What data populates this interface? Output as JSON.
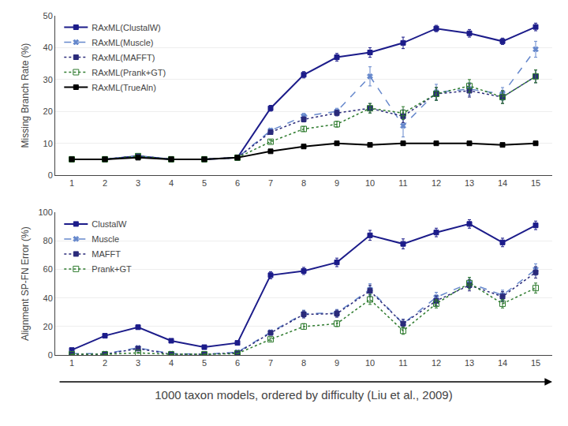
{
  "chart_data": [
    {
      "type": "line",
      "ylabel": "Missing Branch Rate (%)",
      "x": [
        1,
        2,
        3,
        4,
        5,
        6,
        7,
        8,
        9,
        10,
        11,
        12,
        13,
        14,
        15
      ],
      "xlim": [
        0.5,
        15.5
      ],
      "xticks": [
        1,
        2,
        3,
        4,
        5,
        6,
        7,
        8,
        9,
        10,
        11,
        12,
        13,
        14,
        15
      ],
      "ylim": [
        0,
        50
      ],
      "yticks": [
        0,
        10,
        20,
        30,
        40,
        50
      ],
      "grid": true,
      "legend": "upper left",
      "series": [
        {
          "name": "RAxML(ClustalW)",
          "color": "#1c1c8a",
          "marker": "square",
          "line_style": "solid",
          "values": [
            5.0,
            5.0,
            6.0,
            5.0,
            5.0,
            5.5,
            21.0,
            31.5,
            37.0,
            38.5,
            41.5,
            46.0,
            44.5,
            42.0,
            46.5
          ],
          "errors": [
            0.3,
            0.2,
            0.4,
            0.2,
            0.2,
            0.3,
            0.9,
            1.0,
            1.2,
            1.5,
            1.8,
            1.0,
            1.2,
            1.0,
            1.2
          ]
        },
        {
          "name": "RAxML(Muscle)",
          "color": "#6688cc",
          "marker": "x",
          "line_style": "dashed",
          "values": [
            5.0,
            5.0,
            6.0,
            5.0,
            5.0,
            5.5,
            14.0,
            18.5,
            20.0,
            31.0,
            15.5,
            26.0,
            27.0,
            25.5,
            39.5
          ],
          "errors": [
            0.2,
            0.2,
            0.4,
            0.2,
            0.2,
            0.3,
            0.7,
            0.9,
            1.0,
            3.0,
            3.5,
            2.5,
            2.0,
            2.0,
            2.5
          ]
        },
        {
          "name": "RAxML(MAFFT)",
          "color": "#2a2a7a",
          "marker": "square",
          "line_style": "dotted",
          "values": [
            5.0,
            5.0,
            6.0,
            5.0,
            5.0,
            5.5,
            13.5,
            17.5,
            19.5,
            21.0,
            18.5,
            25.5,
            26.5,
            24.5,
            31.0
          ],
          "errors": [
            0.2,
            0.2,
            0.3,
            0.2,
            0.2,
            0.3,
            0.6,
            0.8,
            0.9,
            1.5,
            2.0,
            2.0,
            2.0,
            2.0,
            2.0
          ]
        },
        {
          "name": "RAxML(Prank+GT)",
          "color": "#2e7b2e",
          "marker": "square-open",
          "line_style": "dotted",
          "values": [
            5.0,
            5.0,
            6.0,
            5.0,
            5.0,
            5.5,
            10.5,
            14.5,
            16.0,
            21.0,
            19.5,
            25.5,
            28.0,
            24.5,
            31.0
          ],
          "errors": [
            0.2,
            0.2,
            0.3,
            0.2,
            0.2,
            0.3,
            0.5,
            0.7,
            0.9,
            1.5,
            2.0,
            2.0,
            2.0,
            2.0,
            2.0
          ]
        },
        {
          "name": "RAxML(TrueAln)",
          "color": "#000000",
          "marker": "square",
          "line_style": "solid",
          "values": [
            5.0,
            5.0,
            5.5,
            5.0,
            5.0,
            5.5,
            7.5,
            9.0,
            10.0,
            9.5,
            10.0,
            10.0,
            10.0,
            9.5,
            10.0
          ],
          "errors": [
            0.15,
            0.15,
            0.2,
            0.15,
            0.15,
            0.2,
            0.3,
            0.4,
            0.5,
            0.5,
            0.5,
            0.4,
            0.4,
            0.4,
            0.4
          ]
        }
      ]
    },
    {
      "type": "line",
      "ylabel": "Alignment SP-FN Error (%)",
      "xlabel": "1000 taxon models, ordered by difficulty (Liu et al., 2009)",
      "x": [
        1,
        2,
        3,
        4,
        5,
        6,
        7,
        8,
        9,
        10,
        11,
        12,
        13,
        14,
        15
      ],
      "xlim": [
        0.5,
        15.5
      ],
      "xticks": [
        1,
        2,
        3,
        4,
        5,
        6,
        7,
        8,
        9,
        10,
        11,
        12,
        13,
        14,
        15
      ],
      "ylim": [
        0,
        100
      ],
      "yticks": [
        0,
        20,
        40,
        60,
        80,
        100
      ],
      "grid": true,
      "legend": "upper left",
      "series": [
        {
          "name": "ClustalW",
          "color": "#1c1c8a",
          "marker": "square",
          "line_style": "solid",
          "values": [
            3.5,
            13.5,
            19.5,
            10.0,
            5.5,
            8.5,
            56.0,
            59.0,
            65.0,
            84.0,
            78.0,
            86.0,
            92.0,
            79.0,
            91.0
          ],
          "errors": [
            0.3,
            1.0,
            1.5,
            0.8,
            0.4,
            0.6,
            2.5,
            2.5,
            3.0,
            3.5,
            3.5,
            3.0,
            3.0,
            3.0,
            3.0
          ]
        },
        {
          "name": "Muscle",
          "color": "#6688cc",
          "marker": "x",
          "line_style": "dashed",
          "values": [
            1.0,
            1.0,
            5.0,
            1.0,
            0.5,
            2.0,
            16.0,
            29.0,
            29.5,
            46.0,
            22.0,
            40.5,
            50.5,
            42.0,
            60.0
          ],
          "errors": [
            0.2,
            0.2,
            0.8,
            0.2,
            0.1,
            0.4,
            1.5,
            2.5,
            2.5,
            4.0,
            3.0,
            3.5,
            4.0,
            3.5,
            4.0
          ]
        },
        {
          "name": "MAFFT",
          "color": "#2a2a7a",
          "marker": "square",
          "line_style": "dotted",
          "values": [
            0.5,
            0.5,
            4.5,
            0.5,
            0.5,
            1.5,
            15.5,
            28.5,
            29.0,
            45.0,
            22.0,
            38.0,
            49.0,
            41.0,
            58.0
          ],
          "errors": [
            0.1,
            0.1,
            0.7,
            0.1,
            0.1,
            0.3,
            1.5,
            2.5,
            2.5,
            4.0,
            3.0,
            3.5,
            4.0,
            3.5,
            4.0
          ]
        },
        {
          "name": "Prank+GT",
          "color": "#2e7b2e",
          "marker": "square-open",
          "line_style": "dotted",
          "values": [
            0.5,
            0.5,
            1.5,
            0.5,
            0.5,
            1.0,
            11.0,
            20.0,
            22.0,
            39.0,
            17.0,
            36.0,
            50.5,
            36.0,
            47.0
          ],
          "errors": [
            0.1,
            0.1,
            0.3,
            0.1,
            0.1,
            0.2,
            1.0,
            2.0,
            2.0,
            3.5,
            2.5,
            3.0,
            4.0,
            3.0,
            3.5
          ]
        }
      ]
    }
  ]
}
